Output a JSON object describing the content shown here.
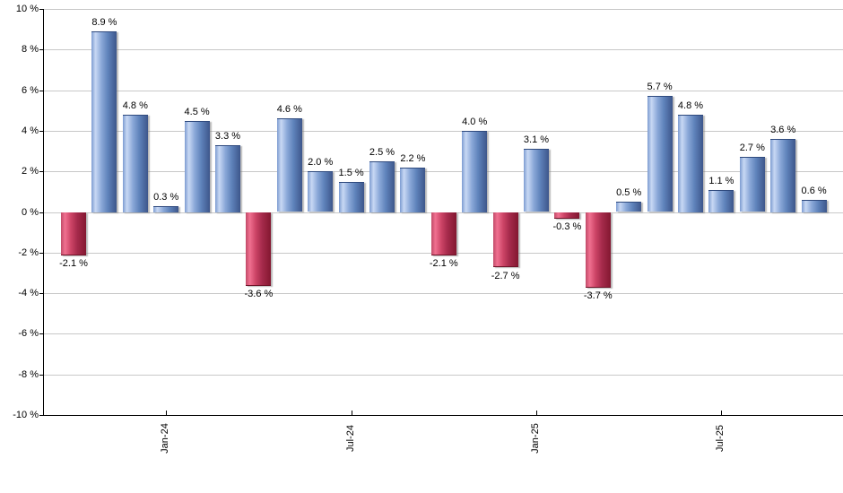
{
  "chart_data": {
    "type": "bar",
    "title": "",
    "values": [
      -2.1,
      8.9,
      4.8,
      0.3,
      4.5,
      3.3,
      -3.6,
      4.6,
      2.0,
      1.5,
      2.5,
      2.2,
      -2.1,
      4.0,
      -2.7,
      3.1,
      -0.3,
      -3.7,
      0.5,
      5.7,
      4.8,
      1.1,
      2.7,
      3.6,
      0.6
    ],
    "bar_labels": [
      "-2.1 %",
      "8.9 %",
      "4.8 %",
      "0.3 %",
      "4.5 %",
      "3.3 %",
      "-3.6 %",
      "4.6 %",
      "2.0 %",
      "1.5 %",
      "2.5 %",
      "2.2 %",
      "-2.1 %",
      "4.0 %",
      "-2.7 %",
      "3.1 %",
      "-0.3 %",
      "-3.7 %",
      "0.5 %",
      "5.7 %",
      "4.8 %",
      "1.1 %",
      "2.7 %",
      "3.6 %",
      "0.6 %"
    ],
    "x_ticks": [
      {
        "index": 3,
        "label": "Jan-24"
      },
      {
        "index": 9,
        "label": "Jul-24"
      },
      {
        "index": 15,
        "label": "Jan-25"
      },
      {
        "index": 21,
        "label": "Jul-25"
      }
    ],
    "y_tick_labels": [
      "10 %",
      "8 %",
      "6 %",
      "4 %",
      "2 %",
      "0 %",
      "-2 %",
      "-4 %",
      "-6 %",
      "-8 %",
      "-10 %"
    ],
    "ylim": [
      -10,
      10
    ],
    "y_step": 2,
    "grid": true,
    "legend": "none",
    "xlabel": "",
    "ylabel": "",
    "colors": {
      "positive_bar": "#7d9cd1",
      "positive_bar_highlight": "#c8d8f4",
      "positive_bar_dark": "#3d568b",
      "negative_bar": "#c14a68",
      "negative_bar_highlight": "#f07090",
      "negative_bar_dark": "#831730",
      "gridline": "#c8c8c8",
      "axis": "#000000",
      "background": "#ffffff",
      "text": "#000000"
    }
  }
}
